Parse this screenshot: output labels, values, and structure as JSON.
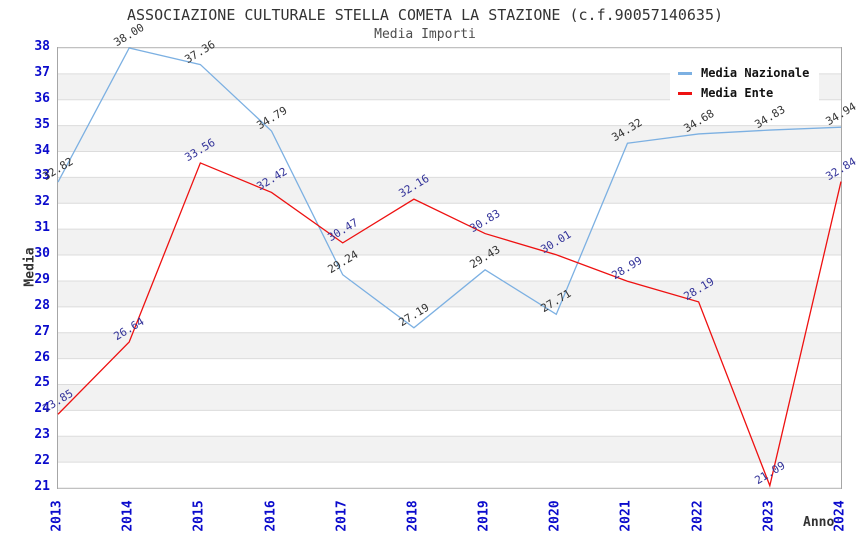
{
  "chart_data": {
    "type": "line",
    "title": "ASSOCIAZIONE CULTURALE STELLA COMETA LA STAZIONE (c.f.90057140635)",
    "subtitle": "Media Importi",
    "xlabel": "Anno",
    "ylabel": "Media",
    "x": [
      2013,
      2014,
      2015,
      2016,
      2017,
      2018,
      2019,
      2020,
      2021,
      2022,
      2023,
      2024
    ],
    "series": [
      {
        "name": "Media Nazionale",
        "color": "#7cb0e2",
        "label_color": "#333333",
        "values": [
          32.82,
          38.0,
          37.36,
          34.79,
          29.24,
          27.19,
          29.43,
          27.71,
          34.32,
          34.68,
          34.83,
          34.94
        ]
      },
      {
        "name": "Media Ente",
        "color": "#ee1111",
        "label_color": "#333399",
        "values": [
          23.85,
          26.64,
          33.56,
          32.42,
          30.47,
          32.16,
          30.83,
          30.01,
          28.99,
          28.19,
          21.09,
          32.84
        ]
      }
    ],
    "ylim": [
      21,
      38
    ],
    "y_tick_step": 1,
    "value_label_decimals": 2,
    "legend_position": "top-right",
    "grid": "horizontal gridlines with alternating gray bands",
    "colors": {
      "tick_label": "#0b0bcc",
      "gridline": "#dcdcdc",
      "plot_border": "#a6a6a6",
      "band": "#f2f2f2",
      "title_text": "#333333"
    }
  }
}
